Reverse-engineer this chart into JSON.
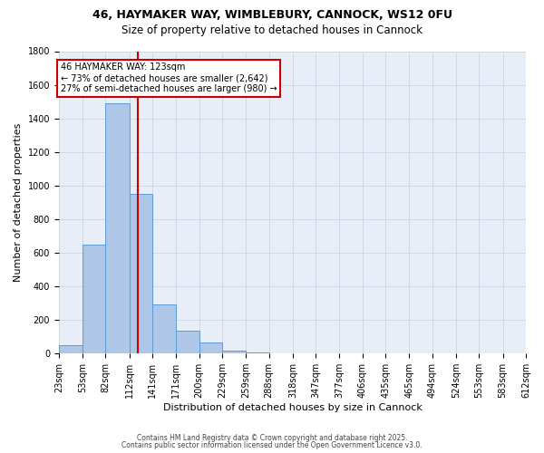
{
  "title_line1": "46, HAYMAKER WAY, WIMBLEBURY, CANNOCK, WS12 0FU",
  "title_line2": "Size of property relative to detached houses in Cannock",
  "xlabel": "Distribution of detached houses by size in Cannock",
  "ylabel": "Number of detached properties",
  "footer_line1": "Contains HM Land Registry data © Crown copyright and database right 2025.",
  "footer_line2": "Contains public sector information licensed under the Open Government Licence v3.0.",
  "bar_edges": [
    23,
    53,
    82,
    112,
    141,
    171,
    200,
    229,
    259,
    288,
    318,
    347,
    377,
    406,
    435,
    465,
    494,
    524,
    553,
    583,
    612
  ],
  "bar_heights": [
    50,
    650,
    1490,
    950,
    295,
    135,
    65,
    20,
    5,
    2,
    1,
    0,
    0,
    0,
    0,
    0,
    0,
    0,
    0,
    0
  ],
  "bar_color": "#aec6e8",
  "bar_edgecolor": "#5b9bd5",
  "vline_x": 123,
  "vline_color": "#cc0000",
  "annotation_title": "46 HAYMAKER WAY: 123sqm",
  "annotation_line2": "← 73% of detached houses are smaller (2,642)",
  "annotation_line3": "27% of semi-detached houses are larger (980) →",
  "annotation_box_edgecolor": "#cc0000",
  "ylim": [
    0,
    1800
  ],
  "yticks": [
    0,
    200,
    400,
    600,
    800,
    1000,
    1200,
    1400,
    1600,
    1800
  ],
  "xtick_labels": [
    "23sqm",
    "53sqm",
    "82sqm",
    "112sqm",
    "141sqm",
    "171sqm",
    "200sqm",
    "229sqm",
    "259sqm",
    "288sqm",
    "318sqm",
    "347sqm",
    "377sqm",
    "406sqm",
    "435sqm",
    "465sqm",
    "494sqm",
    "524sqm",
    "553sqm",
    "583sqm",
    "612sqm"
  ],
  "background_color": "#ffffff",
  "grid_color": "#d0d8e8",
  "title_fontsize": 9,
  "subtitle_fontsize": 8.5,
  "axis_label_fontsize": 8,
  "tick_fontsize": 7,
  "footer_fontsize": 5.5
}
